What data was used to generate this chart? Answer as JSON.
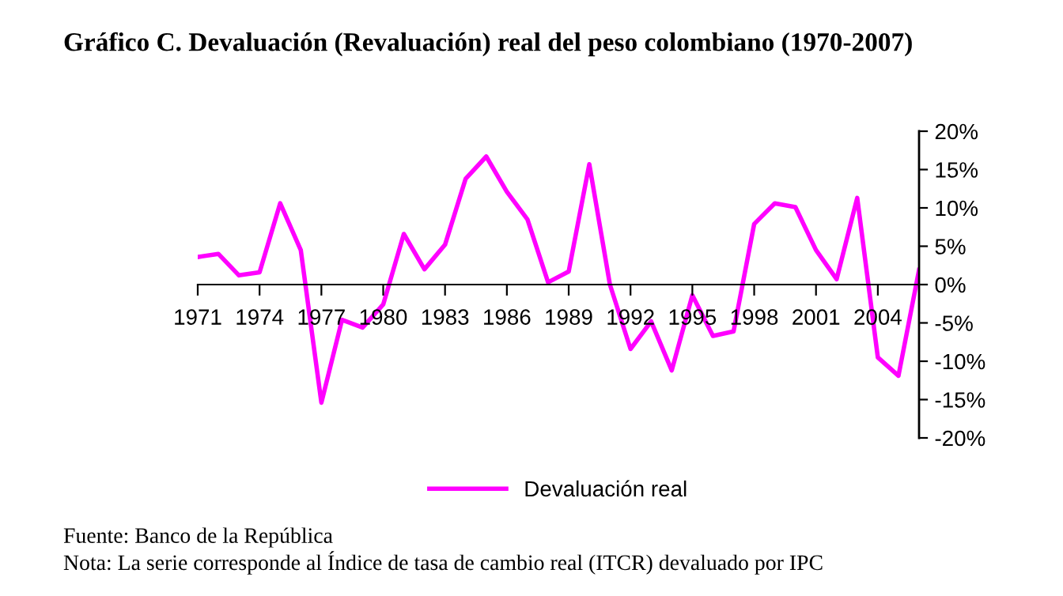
{
  "chart_data": {
    "type": "line",
    "title": "Gráfico C. Devaluación (Revaluación) real del peso colombiano (1970-2007)",
    "x": [
      1971,
      1972,
      1973,
      1974,
      1975,
      1976,
      1977,
      1978,
      1979,
      1980,
      1981,
      1982,
      1983,
      1984,
      1985,
      1986,
      1987,
      1988,
      1989,
      1990,
      1991,
      1992,
      1993,
      1994,
      1995,
      1996,
      1997,
      1998,
      1999,
      2000,
      2001,
      2002,
      2003,
      2004,
      2005,
      2006
    ],
    "series": [
      {
        "name": "Devaluación real",
        "color": "#ff00ff",
        "values": [
          3.6,
          4.0,
          1.2,
          1.6,
          10.6,
          4.5,
          -15.4,
          -4.6,
          -5.6,
          -2.6,
          6.6,
          2.0,
          5.2,
          13.8,
          16.7,
          12.1,
          8.5,
          0.3,
          1.7,
          15.7,
          0,
          -8.4,
          -4.8,
          -11.2,
          -1.4,
          -6.7,
          -6.1,
          7.9,
          10.6,
          10.1,
          4.5,
          0.7,
          11.3,
          -9.5,
          -11.9,
          1.9
        ]
      }
    ],
    "xlim": [
      1971,
      2006
    ],
    "xticks": [
      1971,
      1974,
      1977,
      1980,
      1983,
      1986,
      1989,
      1992,
      1995,
      1998,
      2001,
      2004
    ],
    "ylim": [
      -20,
      20
    ],
    "yticks": [
      {
        "value": 20,
        "label": "20%"
      },
      {
        "value": 15,
        "label": "15%"
      },
      {
        "value": 10,
        "label": "10%"
      },
      {
        "value": 5,
        "label": "5%"
      },
      {
        "value": 0,
        "label": "0%"
      },
      {
        "value": -5,
        "label": "-5%"
      },
      {
        "value": -10,
        "label": "-10%"
      },
      {
        "value": -15,
        "label": "-15%"
      },
      {
        "value": -20,
        "label": "-20%"
      }
    ],
    "legend": "bottom",
    "grid": false,
    "marker": "none",
    "line_style": "solid",
    "annotations": [
      "Fuente: Banco de la República",
      "Nota: La serie corresponde al Índice de tasa de cambio real (ITCR) devaluado por IPC"
    ]
  }
}
